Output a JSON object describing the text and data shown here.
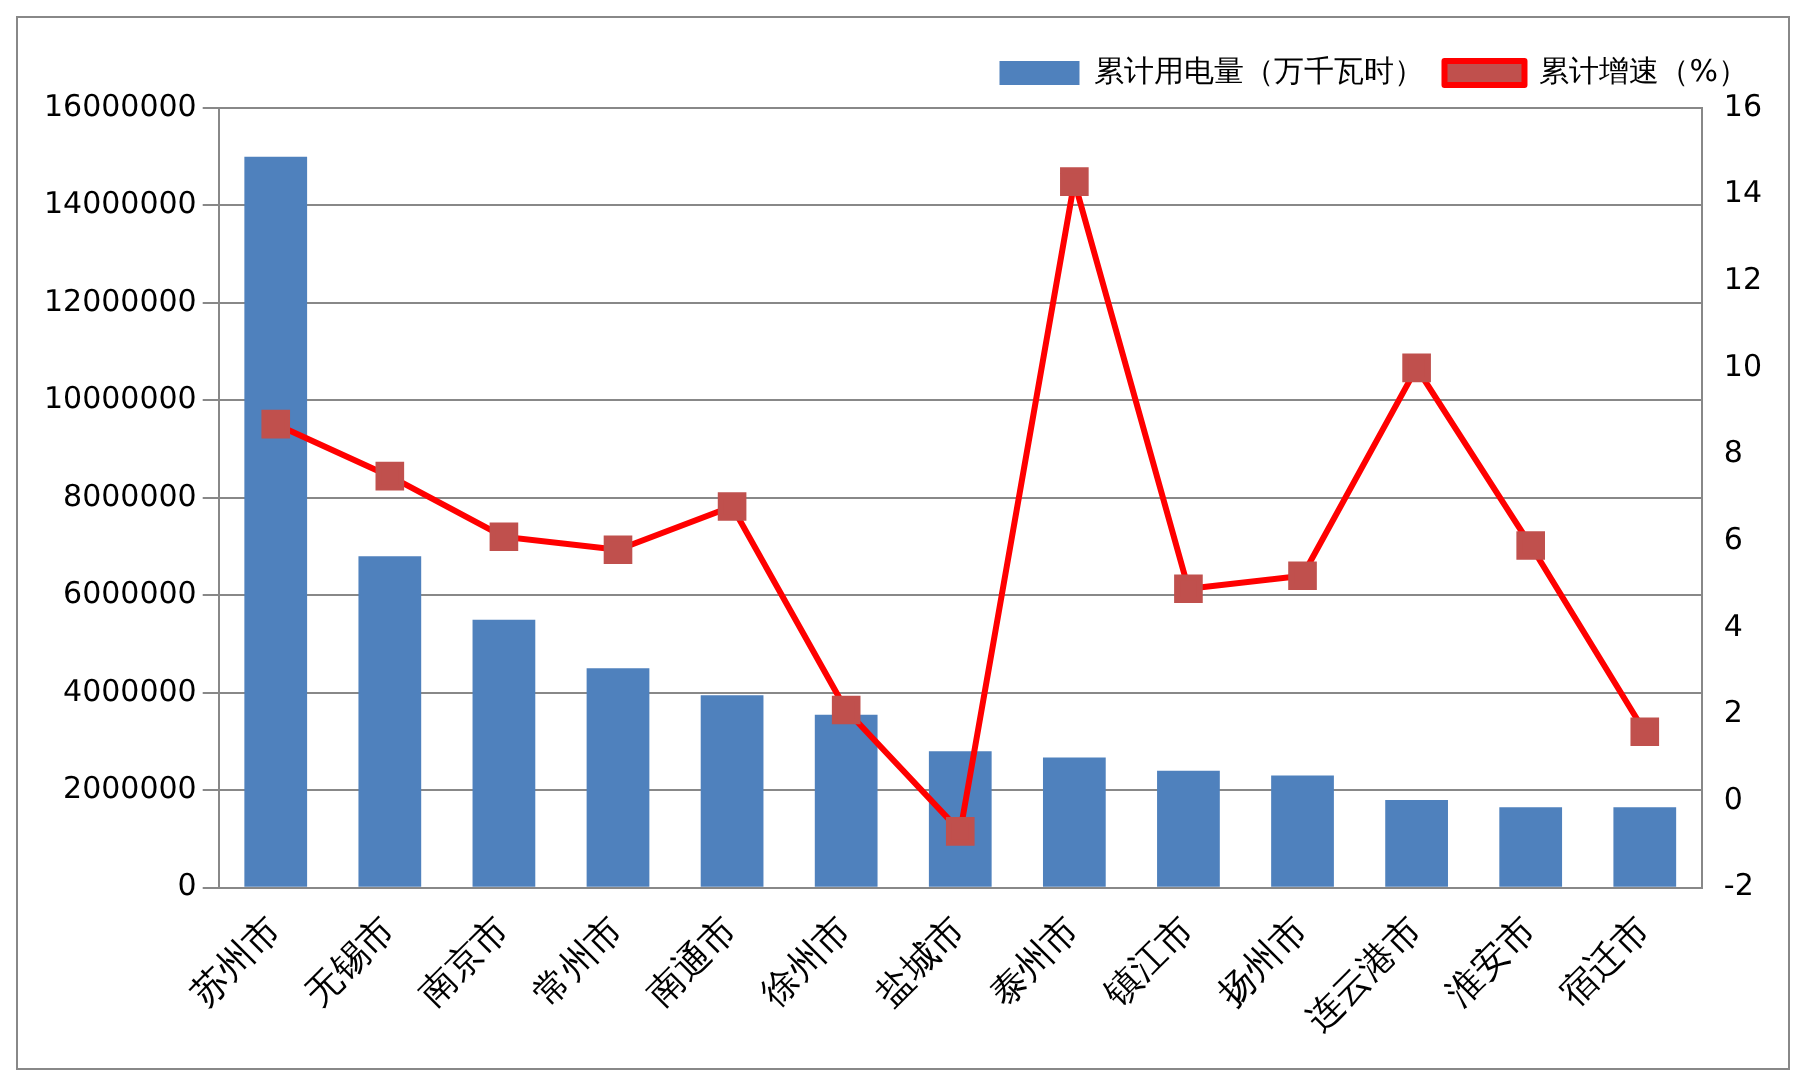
{
  "chart_data": {
    "type": "bar",
    "categories": [
      "苏州市",
      "无锡市",
      "南京市",
      "常州市",
      "南通市",
      "徐州市",
      "盐城市",
      "泰州市",
      "镇江市",
      "扬州市",
      "连云港市",
      "淮安市",
      "宿迁市"
    ],
    "series": [
      {
        "name": "累计用电量（万千瓦时）",
        "color": "#4f81bd",
        "values": [
          15000000,
          6800000,
          5500000,
          4500000,
          3950000,
          3550000,
          2800000,
          2670000,
          2400000,
          2300000,
          1800000,
          1650000,
          1650000
        ]
      },
      {
        "name": "累计增速（%）",
        "type": "line",
        "axis": "y2",
        "color": "#ff0000",
        "marker": "square",
        "values": [
          8.7,
          7.5,
          6.1,
          5.8,
          6.8,
          2.1,
          -0.7,
          14.3,
          4.9,
          5.2,
          10.0,
          5.9,
          1.6
        ]
      }
    ],
    "ylim": [
      0,
      16000000
    ],
    "yticks": [
      0,
      2000000,
      4000000,
      6000000,
      8000000,
      10000000,
      12000000,
      14000000,
      16000000
    ],
    "y2lim": [
      -2,
      16
    ],
    "y2ticks": [
      -2,
      0,
      2,
      4,
      6,
      8,
      10,
      12,
      14,
      16
    ],
    "grid": "y",
    "legend": "top right"
  }
}
